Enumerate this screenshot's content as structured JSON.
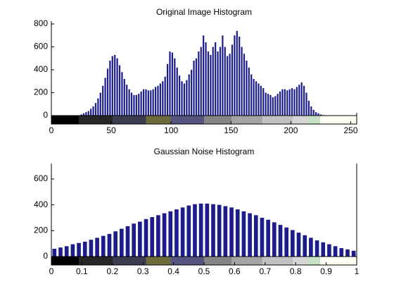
{
  "chart_data": [
    {
      "type": "histogram",
      "title": "Original Image Histogram",
      "color": "#1c1c8c",
      "bins": [
        0,
        2,
        4,
        6,
        8,
        10,
        12,
        14,
        16,
        18,
        20,
        22,
        24,
        26,
        28,
        30,
        32,
        34,
        36,
        38,
        40,
        42,
        44,
        46,
        48,
        50,
        52,
        54,
        56,
        58,
        60,
        62,
        64,
        66,
        68,
        70,
        72,
        74,
        76,
        78,
        80,
        82,
        84,
        86,
        88,
        90,
        92,
        94,
        96,
        98,
        100,
        102,
        104,
        106,
        108,
        110,
        112,
        114,
        116,
        118,
        120,
        122,
        124,
        126,
        128,
        130,
        132,
        134,
        136,
        138,
        140,
        142,
        144,
        146,
        148,
        150,
        152,
        154,
        156,
        158,
        160,
        162,
        164,
        166,
        168,
        170,
        172,
        174,
        176,
        178,
        180,
        182,
        184,
        186,
        188,
        190,
        192,
        194,
        196,
        198,
        200,
        202,
        204,
        206,
        208,
        210,
        212,
        214,
        216,
        218,
        220,
        222,
        224,
        226,
        228,
        230,
        232,
        234,
        236,
        238,
        240,
        242,
        244,
        246,
        248,
        250,
        252,
        254,
        256
      ],
      "values": [
        0,
        0,
        0,
        0,
        0,
        0,
        0,
        0,
        0,
        0,
        0,
        0,
        10,
        20,
        30,
        40,
        60,
        80,
        110,
        150,
        200,
        260,
        330,
        410,
        480,
        520,
        530,
        500,
        440,
        380,
        320,
        270,
        230,
        200,
        180,
        180,
        190,
        210,
        230,
        230,
        220,
        220,
        230,
        250,
        260,
        280,
        300,
        340,
        450,
        560,
        550,
        500,
        420,
        350,
        300,
        280,
        310,
        360,
        400,
        480,
        500,
        560,
        600,
        700,
        640,
        560,
        530,
        600,
        640,
        560,
        600,
        700,
        600,
        520,
        540,
        620,
        700,
        740,
        690,
        600,
        540,
        480,
        420,
        360,
        320,
        300,
        280,
        260,
        240,
        200,
        190,
        180,
        160,
        170,
        190,
        210,
        230,
        230,
        220,
        230,
        240,
        230,
        250,
        270,
        290,
        260,
        200,
        130,
        80,
        50,
        30,
        20,
        10,
        5,
        0,
        0,
        0,
        0,
        0,
        0,
        0,
        0,
        0,
        0,
        0,
        0,
        0,
        0
      ],
      "xlim": [
        0,
        255
      ],
      "ylim": [
        0,
        825
      ],
      "xticks": [
        0,
        50,
        100,
        150,
        200,
        250
      ],
      "yticks": [
        0,
        200,
        400,
        600,
        800
      ]
    },
    {
      "type": "histogram",
      "title": "Gaussian Noise Histogram",
      "color": "#1c1c8c",
      "bins": [
        0,
        0.02,
        0.04,
        0.06,
        0.08,
        0.1,
        0.12,
        0.14,
        0.16,
        0.18,
        0.2,
        0.22,
        0.24,
        0.26,
        0.28,
        0.3,
        0.32,
        0.34,
        0.36,
        0.38,
        0.4,
        0.42,
        0.44,
        0.46,
        0.48,
        0.5,
        0.52,
        0.54,
        0.56,
        0.58,
        0.6,
        0.62,
        0.64,
        0.66,
        0.68,
        0.7,
        0.72,
        0.74,
        0.76,
        0.78,
        0.8,
        0.82,
        0.84,
        0.86,
        0.88,
        0.9,
        0.92,
        0.94,
        0.96,
        0.98,
        1
      ],
      "values": [
        60,
        70,
        80,
        95,
        105,
        115,
        130,
        145,
        160,
        175,
        195,
        215,
        235,
        255,
        270,
        290,
        305,
        320,
        335,
        350,
        365,
        380,
        395,
        405,
        410,
        410,
        405,
        400,
        390,
        380,
        365,
        350,
        335,
        320,
        300,
        285,
        265,
        245,
        225,
        205,
        185,
        165,
        145,
        125,
        110,
        95,
        80,
        65,
        55,
        45
      ],
      "xlim": [
        0,
        1
      ],
      "ylim": [
        0,
        720
      ],
      "xticks": [
        0,
        0.1,
        0.2,
        0.3,
        0.4,
        0.5,
        0.6,
        0.7,
        0.8,
        0.9,
        1
      ],
      "yticks": [
        0,
        200,
        400,
        600
      ]
    }
  ]
}
